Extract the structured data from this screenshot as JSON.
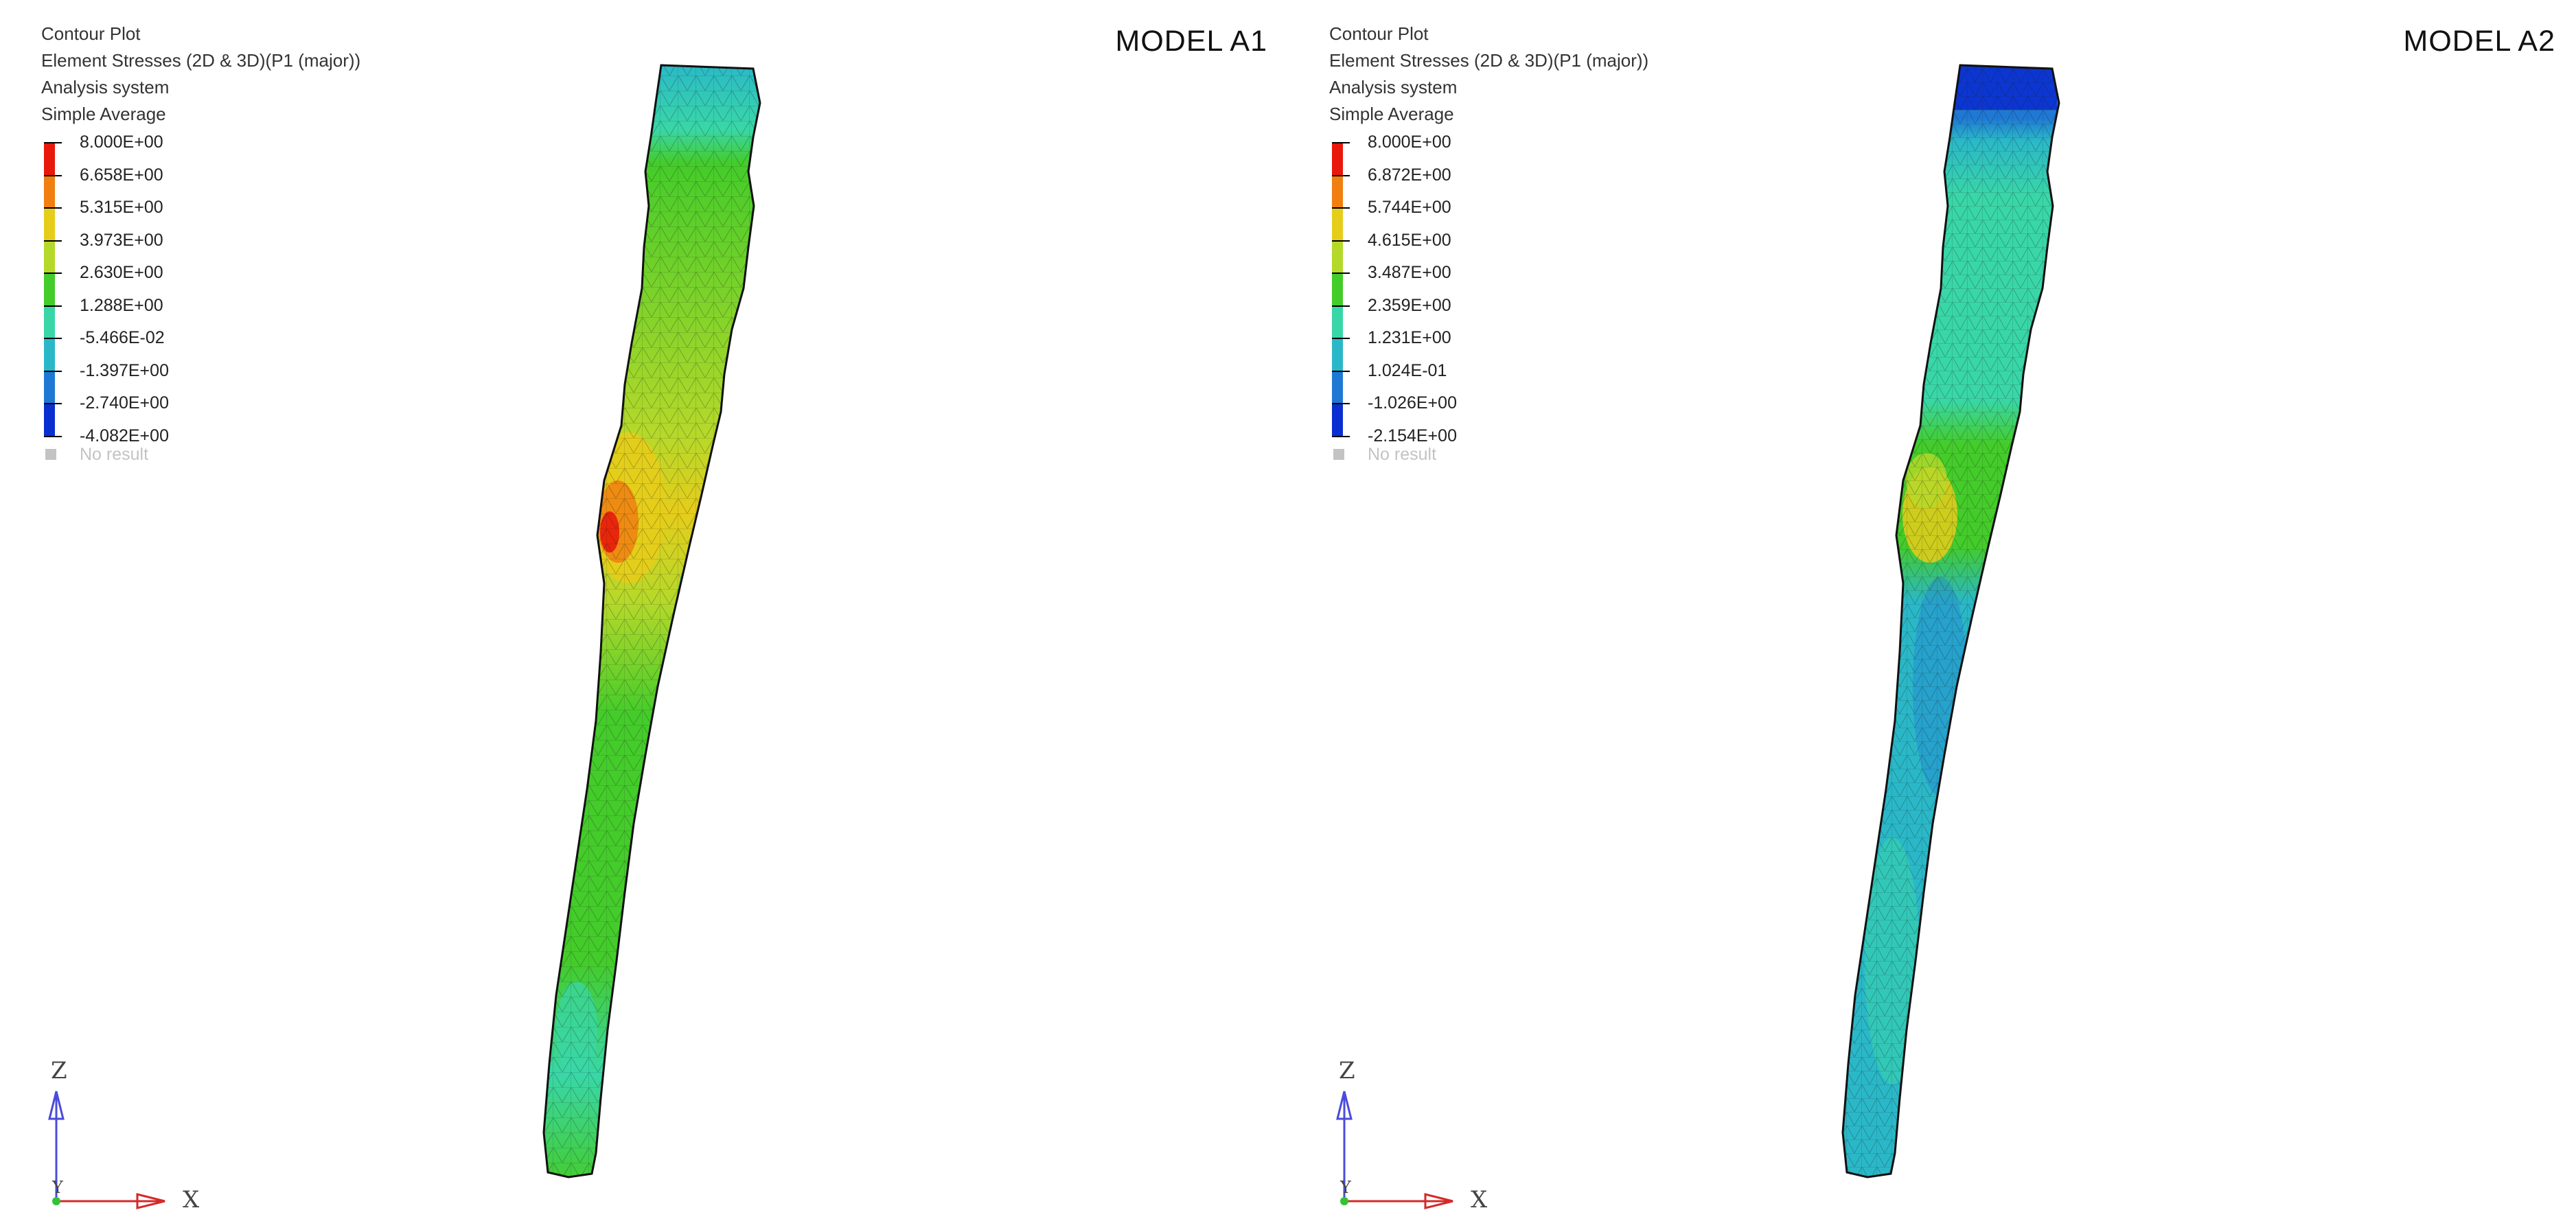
{
  "panels": [
    {
      "info_lines": [
        "Contour Plot",
        "Element Stresses (2D & 3D)(P1 (major))",
        "Analysis system",
        "Simple Average"
      ],
      "legend": [
        "8.000E+00",
        "6.658E+00",
        "5.315E+00",
        "3.973E+00",
        "2.630E+00",
        "1.288E+00",
        "-5.466E-02",
        "-1.397E+00",
        "-2.740E+00",
        "-4.082E+00"
      ],
      "no_result": "No result",
      "model_title": "MODEL A1",
      "axes": {
        "z": "Z",
        "y": "Y",
        "x": "X"
      }
    },
    {
      "info_lines": [
        "Contour Plot",
        "Element Stresses (2D & 3D)(P1 (major))",
        "Analysis system",
        "Simple Average"
      ],
      "legend": [
        "8.000E+00",
        "6.872E+00",
        "5.744E+00",
        "4.615E+00",
        "3.487E+00",
        "2.359E+00",
        "1.231E+00",
        "1.024E-01",
        "-1.026E+00",
        "-2.154E+00"
      ],
      "no_result": "No result",
      "model_title": "MODEL A2",
      "axes": {
        "z": "Z",
        "y": "Y",
        "x": "X"
      }
    }
  ],
  "colors": {
    "legend_bands": [
      "#e8190c",
      "#f07f10",
      "#e6cd1a",
      "#b5d92a",
      "#44cc2a",
      "#39d7a8",
      "#2ab8c8",
      "#1f78d4",
      "#0a2fd0"
    ],
    "mesh_line": "#1a1a1a",
    "axis_z": "#4b4bdc",
    "axis_x": "#d42a2a",
    "origin": "#34c234"
  }
}
